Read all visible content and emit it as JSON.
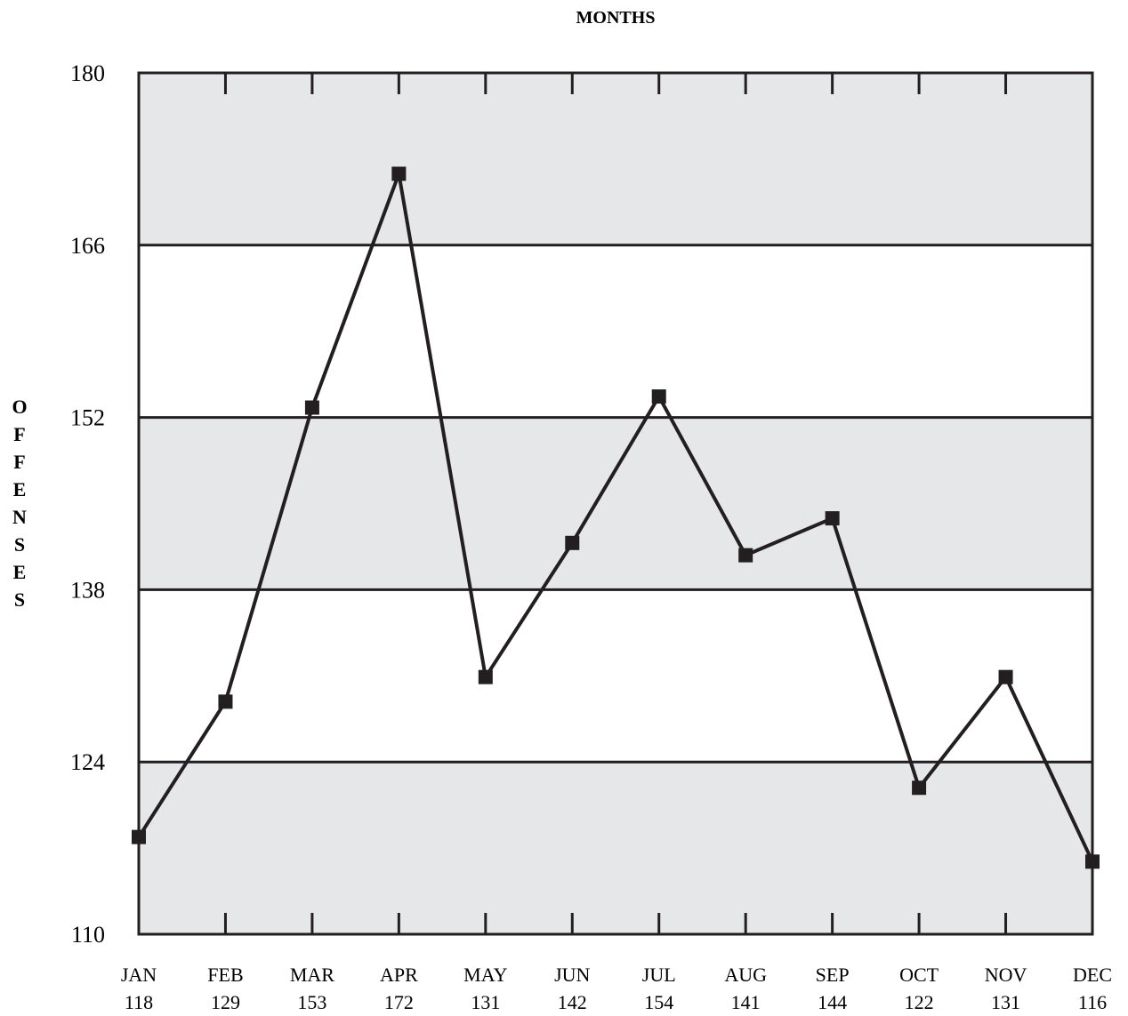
{
  "chart_data": {
    "type": "line",
    "title": "MONTHS",
    "ylabel": "OFFENSES",
    "xlabel": "",
    "categories": [
      "JAN",
      "FEB",
      "MAR",
      "APR",
      "MAY",
      "JUN",
      "JUL",
      "AUG",
      "SEP",
      "OCT",
      "NOV",
      "DEC"
    ],
    "value_labels": [
      "118",
      "129",
      "153",
      "172",
      "131",
      "142",
      "154",
      "141",
      "144",
      "122",
      "131",
      "116"
    ],
    "series": [
      {
        "values": [
          117.9,
          128.9,
          152.8,
          171.8,
          130.9,
          141.8,
          153.7,
          140.8,
          143.8,
          121.9,
          130.9,
          115.9
        ]
      }
    ],
    "yticks": [
      110,
      124,
      138,
      152,
      166,
      180
    ],
    "ylim": [
      110,
      180
    ],
    "grid": true,
    "banded_background": true,
    "colors": {
      "band": "#e6e7e8",
      "line": "#231f20",
      "frame": "#231f20"
    }
  }
}
